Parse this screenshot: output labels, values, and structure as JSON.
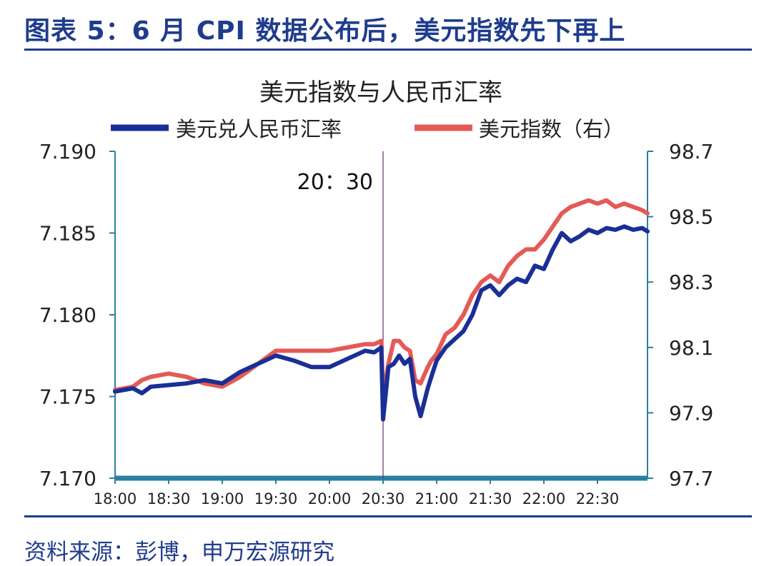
{
  "figure": {
    "title": "图表 5：6 月 CPI 数据公布后，美元指数先下再上",
    "source": "资料来源：彭博，申万宏源研究"
  },
  "chart_data": {
    "type": "line",
    "title": "美元指数与人民币汇率",
    "legend_position": "top",
    "annotation": {
      "label": "20：30",
      "x": "20:30"
    },
    "x_ticks": [
      "18:00",
      "18:30",
      "19:00",
      "19:30",
      "20:00",
      "20:30",
      "21:00",
      "21:30",
      "22:00",
      "22:30"
    ],
    "x_range": [
      "18:00",
      "22:58"
    ],
    "y_left": {
      "ticks": [
        "7.190",
        "7.185",
        "7.180",
        "7.175",
        "7.170"
      ],
      "range": [
        7.17,
        7.19
      ]
    },
    "y_right": {
      "ticks": [
        "98.7",
        "98.5",
        "98.3",
        "98.1",
        "97.9",
        "97.7"
      ],
      "range": [
        97.7,
        98.7
      ]
    },
    "colors": {
      "usdcny": "#1a2f96",
      "dxy": "#e55a55",
      "axis": "#2b7fa0"
    },
    "series": [
      {
        "name": "美元兑人民币汇率",
        "axis": "left",
        "x": [
          "18:00",
          "18:10",
          "18:15",
          "18:20",
          "18:30",
          "18:40",
          "18:50",
          "19:00",
          "19:10",
          "19:20",
          "19:30",
          "19:40",
          "19:50",
          "20:00",
          "20:10",
          "20:20",
          "20:25",
          "20:29",
          "20:30",
          "20:33",
          "20:36",
          "20:39",
          "20:42",
          "20:45",
          "20:48",
          "20:51",
          "20:55",
          "20:57",
          "21:00",
          "21:05",
          "21:10",
          "21:15",
          "21:20",
          "21:25",
          "21:30",
          "21:35",
          "21:40",
          "21:45",
          "21:50",
          "21:55",
          "22:00",
          "22:05",
          "22:10",
          "22:15",
          "22:20",
          "22:25",
          "22:30",
          "22:35",
          "22:40",
          "22:45",
          "22:50",
          "22:55",
          "22:58"
        ],
        "values": [
          7.1753,
          7.1755,
          7.1752,
          7.1756,
          7.1757,
          7.1758,
          7.176,
          7.1758,
          7.1765,
          7.177,
          7.1775,
          7.1772,
          7.1768,
          7.1768,
          7.1773,
          7.1778,
          7.1777,
          7.178,
          7.1736,
          7.1768,
          7.177,
          7.1775,
          7.177,
          7.1773,
          7.175,
          7.1738,
          7.1755,
          7.1762,
          7.1772,
          7.178,
          7.1785,
          7.179,
          7.18,
          7.1815,
          7.1818,
          7.1812,
          7.1818,
          7.1822,
          7.182,
          7.183,
          7.1828,
          7.184,
          7.185,
          7.1845,
          7.1848,
          7.1852,
          7.185,
          7.1853,
          7.1852,
          7.1854,
          7.1852,
          7.1853,
          7.1851
        ]
      },
      {
        "name": "美元指数（右）",
        "axis": "right",
        "x": [
          "18:00",
          "18:10",
          "18:15",
          "18:20",
          "18:30",
          "18:40",
          "18:50",
          "19:00",
          "19:10",
          "19:20",
          "19:30",
          "19:40",
          "19:50",
          "20:00",
          "20:10",
          "20:20",
          "20:25",
          "20:29",
          "20:30",
          "20:33",
          "20:36",
          "20:39",
          "20:42",
          "20:45",
          "20:48",
          "20:51",
          "20:55",
          "20:57",
          "21:00",
          "21:05",
          "21:10",
          "21:15",
          "21:20",
          "21:25",
          "21:30",
          "21:35",
          "21:40",
          "21:45",
          "21:50",
          "21:55",
          "22:00",
          "22:05",
          "22:10",
          "22:15",
          "22:20",
          "22:25",
          "22:30",
          "22:35",
          "22:40",
          "22:45",
          "22:50",
          "22:55",
          "22:58"
        ],
        "values": [
          97.97,
          97.98,
          98.0,
          98.01,
          98.02,
          98.01,
          97.99,
          97.98,
          98.01,
          98.05,
          98.09,
          98.09,
          98.09,
          98.09,
          98.1,
          98.11,
          98.11,
          98.12,
          97.95,
          98.05,
          98.12,
          98.12,
          98.1,
          98.09,
          98.0,
          97.99,
          98.04,
          98.06,
          98.08,
          98.14,
          98.16,
          98.2,
          98.26,
          98.3,
          98.32,
          98.3,
          98.35,
          98.38,
          98.4,
          98.4,
          98.43,
          98.47,
          98.51,
          98.53,
          98.54,
          98.55,
          98.54,
          98.55,
          98.53,
          98.54,
          98.53,
          98.52,
          98.51
        ]
      }
    ]
  }
}
